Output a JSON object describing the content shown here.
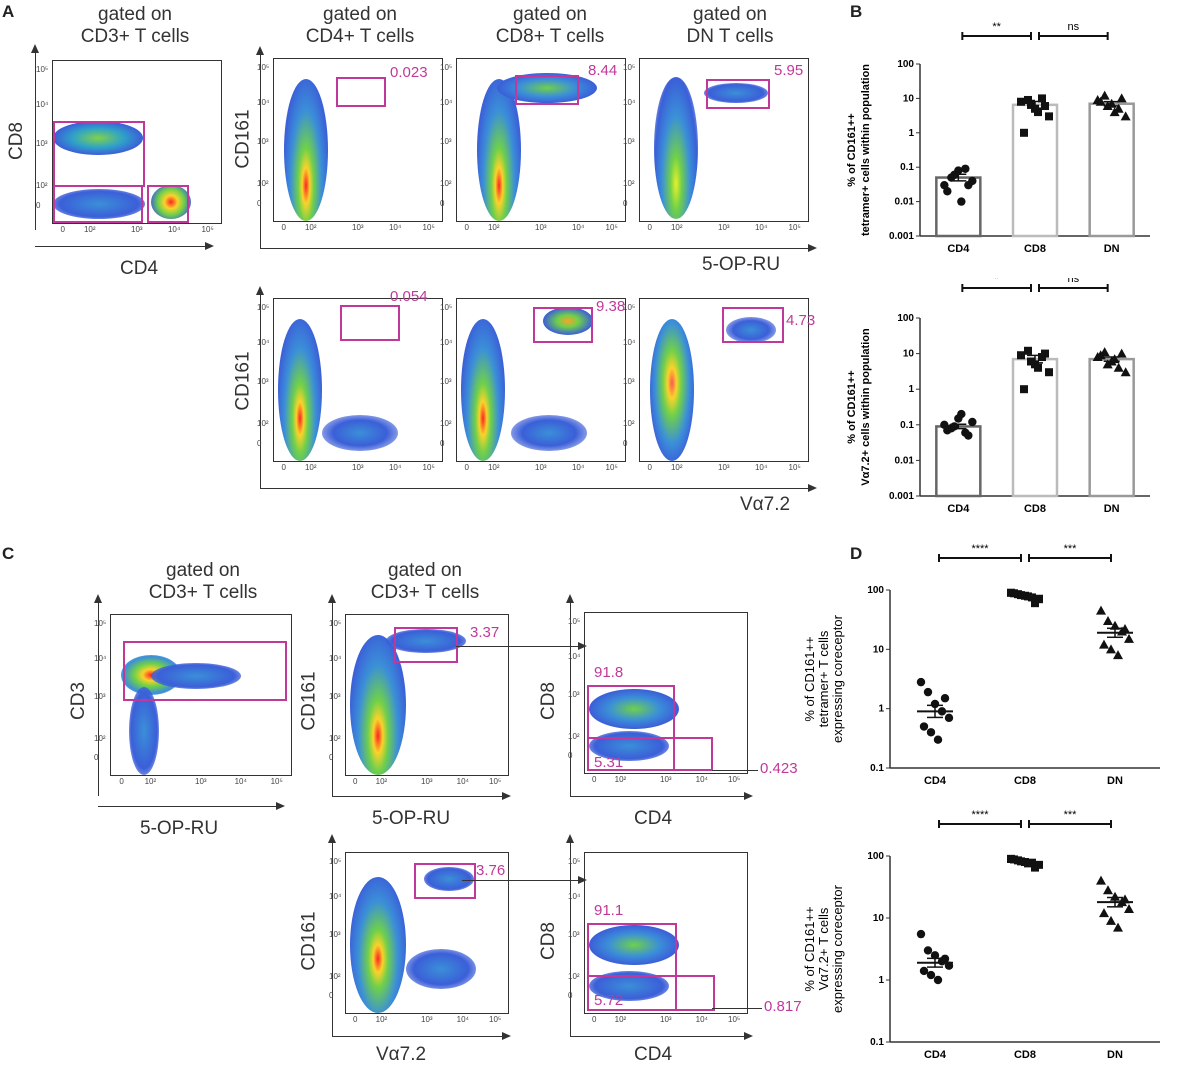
{
  "panels": {
    "A": {
      "label": "A",
      "top_row": [
        {
          "gate": "gated on\nCD3+ T cells",
          "x_axis": "CD4",
          "y_axis": "CD8",
          "values": []
        },
        {
          "gate": "gated on\nCD4+ T cells",
          "y_axis": "CD161",
          "values": [
            "0.023"
          ]
        },
        {
          "gate": "gated on\nCD8+ T cells",
          "values": [
            "8.44"
          ]
        },
        {
          "gate": "gated on\nDN T cells",
          "values": [
            "5.95"
          ]
        }
      ],
      "top_x_axis": "5-OP-RU",
      "bottom_row": [
        {
          "y_axis": "CD161",
          "values": [
            "0.054"
          ]
        },
        {
          "values": [
            "9.38"
          ]
        },
        {
          "values": [
            "4.73"
          ]
        }
      ],
      "bottom_x_axis": "Vα7.2"
    },
    "B": {
      "label": "B",
      "top_ylabel": "% of CD161++\ntetramer+ cells within population",
      "bottom_ylabel": "% of CD161++\nVα7.2+ cells within population",
      "sig_top": [
        "**",
        "ns"
      ],
      "sig_bottom": [
        "*",
        "ns"
      ]
    },
    "C": {
      "label": "C",
      "plots": [
        {
          "gate": "gated on\nCD3+ T cells",
          "y_axis": "CD3",
          "x_axis": "5-OP-RU"
        },
        {
          "gate": "gated on\nCD3+ T cells",
          "y_axis": "CD161",
          "x_axis": "5-OP-RU",
          "values": [
            "3.37"
          ]
        },
        {
          "y_axis": "CD8",
          "x_axis": "CD4",
          "values": [
            "91.8",
            "5.31",
            "0.423"
          ]
        },
        {
          "y_axis": "CD161",
          "x_axis": "Vα7.2",
          "values": [
            "3.76"
          ]
        },
        {
          "y_axis": "CD8",
          "x_axis": "CD4",
          "values": [
            "91.1",
            "5.72",
            "0.817"
          ]
        }
      ]
    },
    "D": {
      "label": "D",
      "top_ylabel": "% of CD161++\ntetramer+ T cells\nexpressing coreceptor",
      "bottom_ylabel": "% of CD161++\nVα7.2+ T cells\nexpressing coreceptor",
      "sig_top": [
        "****",
        "***"
      ],
      "sig_bottom": [
        "****",
        "***"
      ]
    }
  },
  "ticks": {
    "x": [
      "0",
      "10²",
      "10³",
      "10⁴",
      "10⁵"
    ],
    "y": [
      "0",
      "10²",
      "10³",
      "10⁴",
      "10⁵"
    ]
  },
  "chart_data": [
    {
      "type": "bar",
      "panel": "B-top",
      "categories": [
        "CD4",
        "CD8",
        "DN"
      ],
      "values": [
        0.05,
        6.5,
        7.0
      ],
      "ylabel": "% of CD161++ tetramer+ cells within population",
      "yscale": "log",
      "ylim": [
        0.001,
        100
      ],
      "yticks": [
        "0.001",
        "0.01",
        "0.1",
        "1",
        "10",
        "100"
      ],
      "points": {
        "CD4": [
          0.03,
          0.05,
          0.08,
          0.09,
          0.04,
          0.02,
          0.06,
          0.01,
          0.03
        ],
        "CD8": [
          8,
          9,
          5,
          10,
          3,
          1,
          7,
          4,
          6
        ],
        "DN": [
          9,
          12,
          7,
          5,
          3,
          8,
          6,
          4,
          10
        ]
      },
      "significance": [
        {
          "pair": [
            "CD4",
            "CD8"
          ],
          "label": "**"
        },
        {
          "pair": [
            "CD8",
            "DN"
          ],
          "label": "ns"
        }
      ]
    },
    {
      "type": "bar",
      "panel": "B-bottom",
      "categories": [
        "CD4",
        "CD8",
        "DN"
      ],
      "values": [
        0.09,
        7.0,
        7.0
      ],
      "ylabel": "% of CD161++ Vα7.2+ cells within population",
      "yscale": "log",
      "ylim": [
        0.001,
        100
      ],
      "yticks": [
        "0.001",
        "0.01",
        "0.1",
        "1",
        "10",
        "100"
      ],
      "points": {
        "CD4": [
          0.1,
          0.08,
          0.15,
          0.06,
          0.12,
          0.07,
          0.09,
          0.2,
          0.05
        ],
        "CD8": [
          9,
          12,
          5,
          8,
          3,
          1,
          6,
          4,
          10
        ],
        "DN": [
          8,
          11,
          6,
          4,
          3,
          9,
          5,
          7,
          10
        ]
      },
      "significance": [
        {
          "pair": [
            "CD4",
            "CD8"
          ],
          "label": "*"
        },
        {
          "pair": [
            "CD8",
            "DN"
          ],
          "label": "ns"
        }
      ]
    },
    {
      "type": "scatter",
      "panel": "D-top",
      "categories": [
        "CD4",
        "CD8",
        "DN"
      ],
      "means": [
        0.9,
        80,
        19
      ],
      "ylabel": "% of CD161++ tetramer+ T cells expressing coreceptor",
      "yscale": "log",
      "ylim": [
        0.1,
        100
      ],
      "yticks": [
        "0.1",
        "1",
        "10",
        "100"
      ],
      "points": {
        "CD4": [
          2.8,
          1.9,
          1.2,
          0.9,
          0.7,
          0.5,
          0.4,
          0.3,
          1.5
        ],
        "CD8": [
          90,
          85,
          80,
          75,
          70,
          88,
          82,
          78,
          60
        ],
        "DN": [
          45,
          30,
          25,
          20,
          15,
          12,
          10,
          8,
          22
        ]
      },
      "significance": [
        {
          "pair": [
            "CD4",
            "CD8"
          ],
          "label": "****"
        },
        {
          "pair": [
            "CD8",
            "DN"
          ],
          "label": "***"
        }
      ]
    },
    {
      "type": "scatter",
      "panel": "D-bottom",
      "categories": [
        "CD4",
        "CD8",
        "DN"
      ],
      "means": [
        1.9,
        80,
        18
      ],
      "ylabel": "% of CD161++ Vα7.2+ T cells expressing coreceptor",
      "yscale": "log",
      "ylim": [
        0.1,
        100
      ],
      "yticks": [
        "0.1",
        "1",
        "10",
        "100"
      ],
      "points": {
        "CD4": [
          5.5,
          3,
          2.5,
          2,
          1.7,
          1.4,
          1.2,
          1.0,
          2.2
        ],
        "CD8": [
          90,
          85,
          80,
          78,
          72,
          88,
          82,
          76,
          65
        ],
        "DN": [
          40,
          28,
          22,
          18,
          14,
          12,
          9,
          7,
          20
        ]
      },
      "significance": [
        {
          "pair": [
            "CD4",
            "CD8"
          ],
          "label": "****"
        },
        {
          "pair": [
            "CD8",
            "DN"
          ],
          "label": "***"
        }
      ]
    }
  ]
}
